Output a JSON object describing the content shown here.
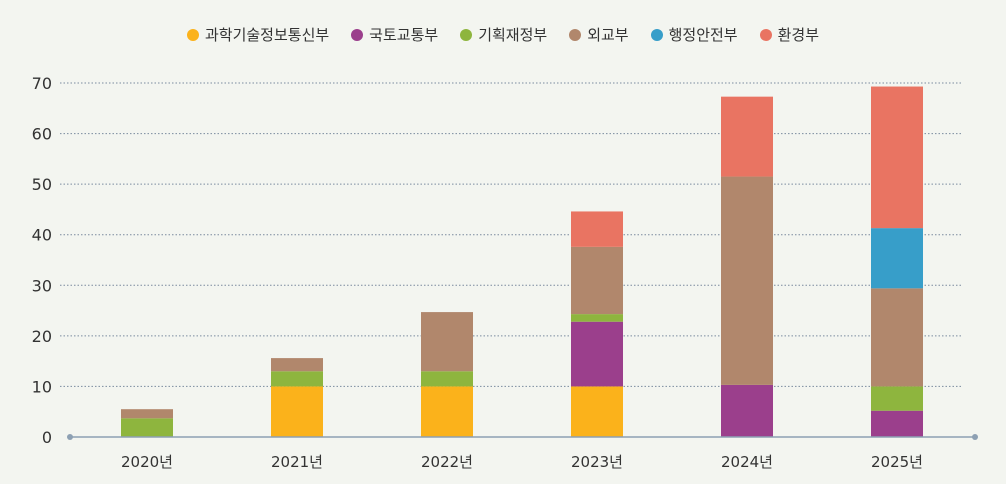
{
  "chart_data": {
    "type": "bar",
    "stacked": true,
    "categories": [
      "2020년",
      "2021년",
      "2022년",
      "2023년",
      "2024년",
      "2025년"
    ],
    "ylim": [
      0,
      70
    ],
    "yticks": [
      0,
      10,
      20,
      30,
      40,
      50,
      60,
      70
    ],
    "grid": true,
    "legend_position": "top-center",
    "series": [
      {
        "name": "과학기술정보통신부",
        "color": "#fbb21b",
        "values": [
          0,
          10,
          10,
          10,
          0,
          0
        ]
      },
      {
        "name": "국토교통부",
        "color": "#9b3f8c",
        "values": [
          0,
          0,
          0,
          12.8,
          10.3,
          5.2
        ]
      },
      {
        "name": "기획재정부",
        "color": "#8eb53e",
        "values": [
          3.7,
          3,
          3,
          1.5,
          0,
          4.8
        ]
      },
      {
        "name": "외교부",
        "color": "#b1876c",
        "values": [
          1.8,
          2.6,
          11.7,
          13.3,
          41.2,
          19.4
        ]
      },
      {
        "name": "행정안전부",
        "color": "#379ec9",
        "values": [
          0,
          0,
          0,
          0,
          0,
          11.9
        ]
      },
      {
        "name": "환경부",
        "color": "#e97462",
        "values": [
          0,
          0,
          0,
          7,
          15.8,
          28
        ]
      }
    ]
  }
}
